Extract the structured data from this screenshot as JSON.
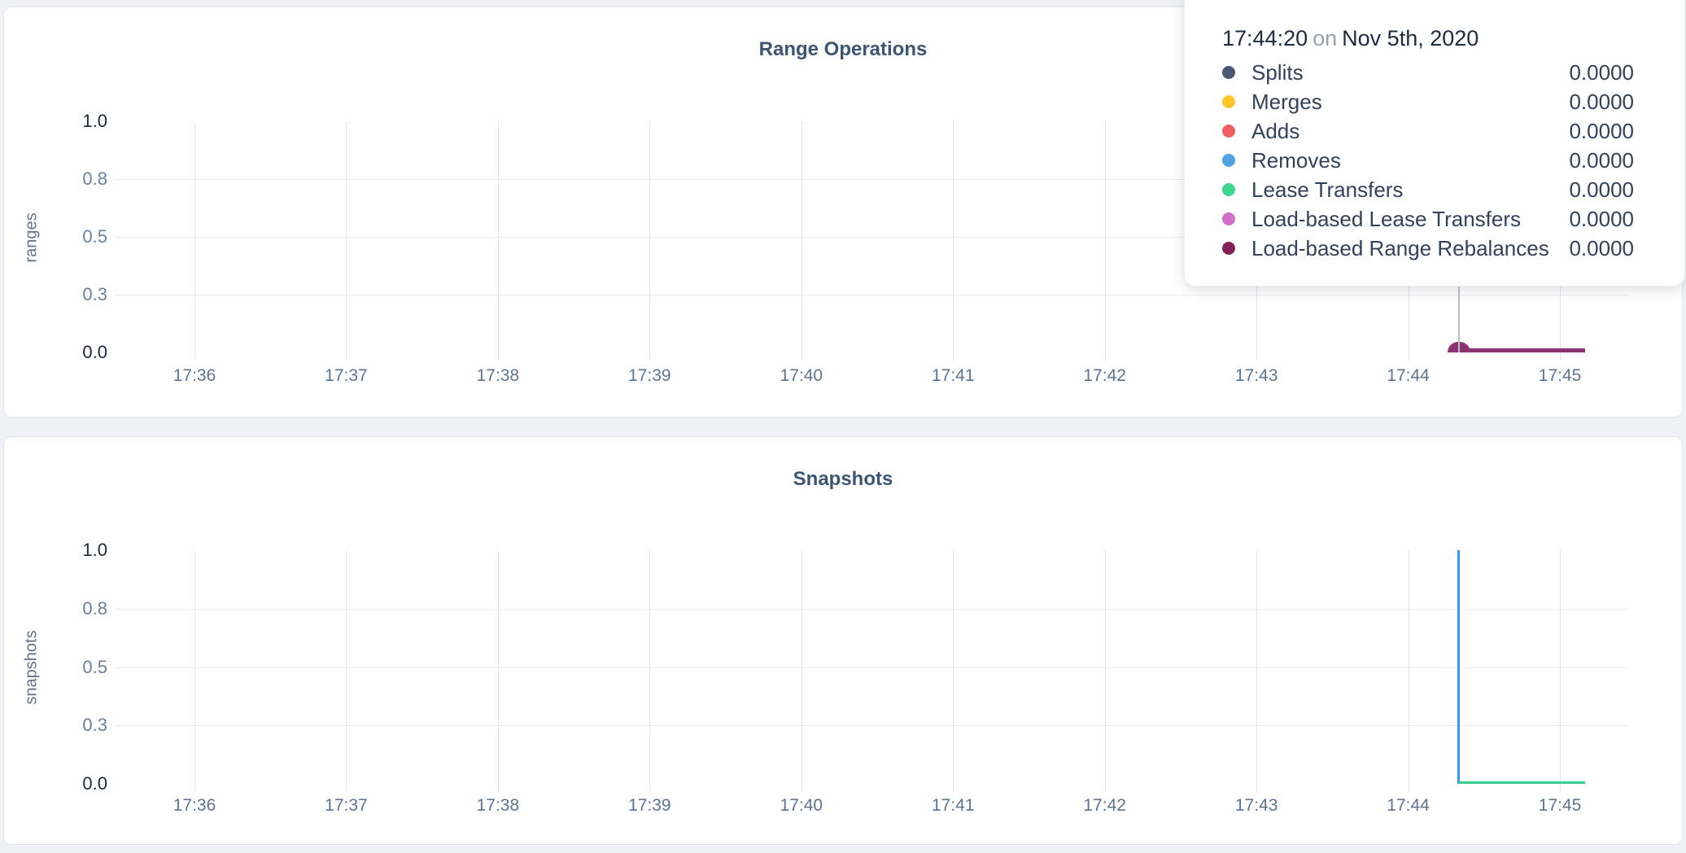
{
  "page": {
    "background": "#eff1f4",
    "card_background": "#ffffff"
  },
  "tooltip": {
    "time": "17:44:20",
    "connector": "on",
    "date": "Nov 5th, 2020",
    "rows": [
      {
        "label": "Splits",
        "value": "0.0000",
        "color": "#475872"
      },
      {
        "label": "Merges",
        "value": "0.0000",
        "color": "#ffc529"
      },
      {
        "label": "Adds",
        "value": "0.0000",
        "color": "#ef5e60"
      },
      {
        "label": "Removes",
        "value": "0.0000",
        "color": "#4fa3e3"
      },
      {
        "label": "Lease Transfers",
        "value": "0.0000",
        "color": "#3dd68c"
      },
      {
        "label": "Load-based Lease Transfers",
        "value": "0.0000",
        "color": "#d36fc8"
      },
      {
        "label": "Load-based Range Rebalances",
        "value": "0.0000",
        "color": "#81215a"
      }
    ]
  },
  "chart_data": [
    {
      "type": "line",
      "title": "Range Operations",
      "ylabel": "ranges",
      "ylim": [
        0,
        1
      ],
      "grid": true,
      "yticks": [
        {
          "label": "1.0",
          "strong": true
        },
        {
          "label": "0.8",
          "strong": false
        },
        {
          "label": "0.5",
          "strong": false
        },
        {
          "label": "0.3",
          "strong": false
        },
        {
          "label": "0.0",
          "strong": true
        }
      ],
      "xticks": [
        "17:36",
        "17:37",
        "17:38",
        "17:39",
        "17:40",
        "17:41",
        "17:42",
        "17:43",
        "17:44",
        "17:45"
      ],
      "series": [
        {
          "name": "Splits",
          "color": "#475872",
          "w": 5,
          "x": [
            "17:44:20",
            "17:45:10"
          ],
          "y": [
            0,
            0
          ]
        },
        {
          "name": "Merges",
          "color": "#ffc529",
          "w": 5,
          "x": [
            "17:44:20",
            "17:45:10"
          ],
          "y": [
            0,
            0
          ]
        },
        {
          "name": "Adds",
          "color": "#ef5e60",
          "w": 5,
          "x": [
            "17:44:20",
            "17:45:10"
          ],
          "y": [
            0,
            0
          ]
        },
        {
          "name": "Removes",
          "color": "#4fa3e3",
          "w": 5,
          "x": [
            "17:44:20",
            "17:45:10"
          ],
          "y": [
            0,
            0
          ]
        },
        {
          "name": "Lease Transfers",
          "color": "#3dd68c",
          "w": 5,
          "x": [
            "17:44:20",
            "17:45:10"
          ],
          "y": [
            0,
            0
          ]
        },
        {
          "name": "Load-based Lease Transfers",
          "color": "#d36fc8",
          "w": 5,
          "x": [
            "17:44:20",
            "17:45:10"
          ],
          "y": [
            0,
            0
          ]
        },
        {
          "name": "Load-based Range Rebalances",
          "color": "#8b3272",
          "w": 5,
          "x": [
            "17:44:20",
            "17:45:10"
          ],
          "y": [
            0,
            0
          ]
        }
      ],
      "hover": {
        "time": "17:44:20",
        "value": 0,
        "dot_color": "#8b3272",
        "crosshair_color": "#b9bec4"
      }
    },
    {
      "type": "line",
      "title": "Snapshots",
      "ylabel": "snapshots",
      "ylim": [
        0,
        1
      ],
      "grid": true,
      "yticks": [
        {
          "label": "1.0",
          "strong": true
        },
        {
          "label": "0.8",
          "strong": false
        },
        {
          "label": "0.5",
          "strong": false
        },
        {
          "label": "0.3",
          "strong": false
        },
        {
          "label": "0.0",
          "strong": true
        }
      ],
      "xticks": [
        "17:36",
        "17:37",
        "17:38",
        "17:39",
        "17:40",
        "17:41",
        "17:42",
        "17:43",
        "17:44",
        "17:45"
      ],
      "series": [
        {
          "name": "snapshots-series-blue",
          "color": "#2e9bf2",
          "w": 3,
          "x": [
            "17:44:20",
            "17:44:20"
          ],
          "y": [
            1,
            0
          ]
        },
        {
          "name": "snapshots-series-green",
          "color": "#37cd8d",
          "w": 3,
          "x": [
            "17:44:20",
            "17:45:10"
          ],
          "y": [
            0,
            0
          ]
        }
      ]
    }
  ]
}
